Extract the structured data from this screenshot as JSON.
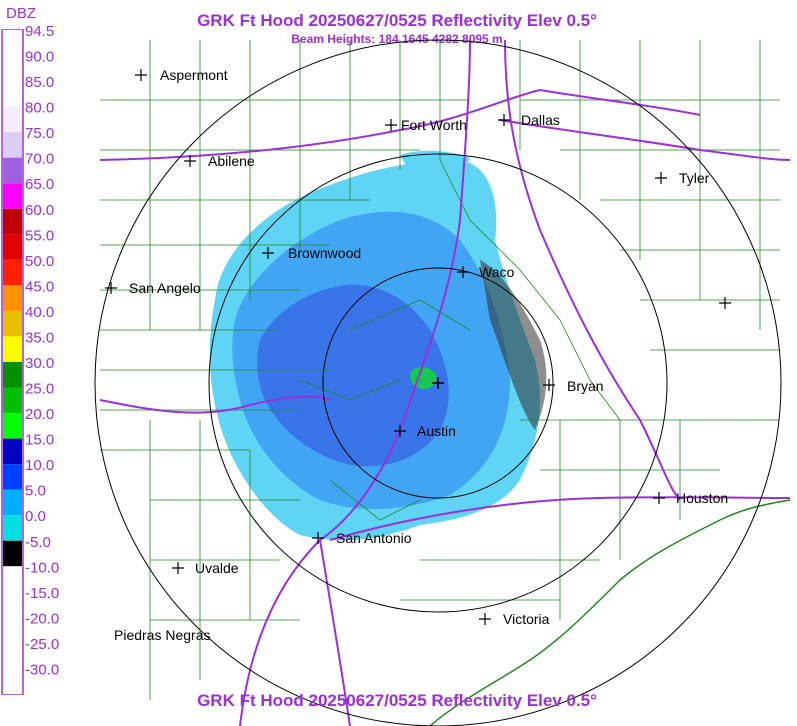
{
  "header": {
    "title": "GRK Ft Hood 20250627/0525 Reflectivity Elev 0.5°",
    "subtitle": "Beam Heights: 184 1645 4282 8095 m",
    "footer_title": "GRK Ft Hood 20250627/0525 Reflectivity Elev 0.5°"
  },
  "legend": {
    "unit": "DBZ",
    "levels": [
      {
        "value": "94.5",
        "color": "#ffffff"
      },
      {
        "value": "90.0",
        "color": "#ffffff"
      },
      {
        "value": "85.0",
        "color": "#ffffff"
      },
      {
        "value": "80.0",
        "color": "#f4eefc"
      },
      {
        "value": "75.0",
        "color": "#dccdf2"
      },
      {
        "value": "70.0",
        "color": "#a060e0"
      },
      {
        "value": "65.0",
        "color": "#ff00ff"
      },
      {
        "value": "60.0",
        "color": "#c00000"
      },
      {
        "value": "55.0",
        "color": "#e00000"
      },
      {
        "value": "50.0",
        "color": "#ff2000"
      },
      {
        "value": "45.0",
        "color": "#ff9000"
      },
      {
        "value": "40.0",
        "color": "#e8c000"
      },
      {
        "value": "35.0",
        "color": "#ffff00"
      },
      {
        "value": "30.0",
        "color": "#009000"
      },
      {
        "value": "25.0",
        "color": "#00c000"
      },
      {
        "value": "20.0",
        "color": "#00ff00"
      },
      {
        "value": "15.0",
        "color": "#0000c0"
      },
      {
        "value": "10.0",
        "color": "#0040ff"
      },
      {
        "value": "5.0",
        "color": "#00b0ff"
      },
      {
        "value": "0.0",
        "color": "#00e0e0"
      },
      {
        "value": "-5.0",
        "color": "#000000"
      },
      {
        "value": "-10.0",
        "color": "#ffffff"
      },
      {
        "value": "-15.0",
        "color": "#ffffff"
      },
      {
        "value": "-20.0",
        "color": "#ffffff"
      },
      {
        "value": "-25.0",
        "color": "#ffffff"
      },
      {
        "value": "-30.0",
        "color": "#ffffff"
      }
    ]
  },
  "cities": [
    {
      "key": "aspermont",
      "name": "Aspermont"
    },
    {
      "key": "fort-worth",
      "name": "Fort Worth"
    },
    {
      "key": "dallas",
      "name": "Dallas"
    },
    {
      "key": "abilene",
      "name": "Abilene"
    },
    {
      "key": "tyler",
      "name": "Tyler"
    },
    {
      "key": "brownwood",
      "name": "Brownwood"
    },
    {
      "key": "waco",
      "name": "Waco"
    },
    {
      "key": "san-angelo",
      "name": "San Angelo"
    },
    {
      "key": "bryan",
      "name": "Bryan"
    },
    {
      "key": "austin",
      "name": "Austin"
    },
    {
      "key": "houston",
      "name": "Houston"
    },
    {
      "key": "san-antonio",
      "name": "San Antonio"
    },
    {
      "key": "uvalde",
      "name": "Uvalde"
    },
    {
      "key": "victoria",
      "name": "Victoria"
    },
    {
      "key": "piedras-negras",
      "name": "Piedras Negras"
    }
  ],
  "colors": {
    "title": "#9b30d9",
    "county_lines": "#1f8a1f",
    "highways": "#9b30d9",
    "range_rings": "#000000",
    "reflectivity_light": "#3cc8f0",
    "reflectivity_medium": "#2a8cf0",
    "reflectivity_strong": "#1f5ee0"
  }
}
